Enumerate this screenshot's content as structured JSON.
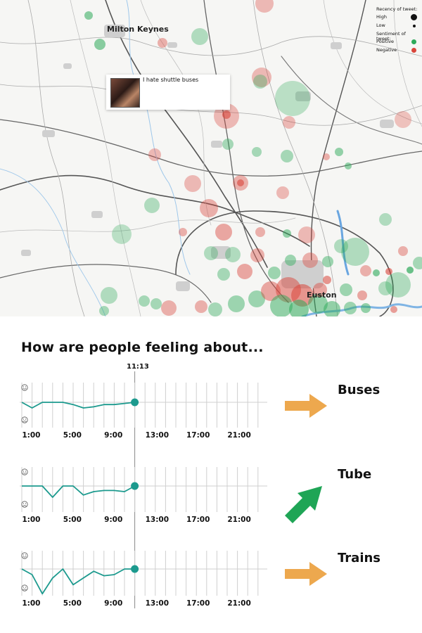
{
  "map": {
    "place_labels": [
      {
        "id": "milton-keynes",
        "text": "Milton Keynes"
      },
      {
        "id": "euston",
        "text": "Euston"
      }
    ],
    "popup": {
      "text": "I hate shuttle buses"
    },
    "legend": {
      "recency_title": "Recency of tweet:",
      "recency_items": [
        {
          "label": "High"
        },
        {
          "label": "Low"
        }
      ],
      "sentiment_title": "Sentiment of tweet:",
      "sentiment_items": [
        {
          "label": "Positive",
          "color": "#2eaa5a"
        },
        {
          "label": "Negative",
          "color": "#d9453b"
        }
      ]
    },
    "colors": {
      "positive": "#2eaa5a",
      "negative": "#d9453b"
    }
  },
  "question": "How are people feeling about...",
  "current_time": "11:13",
  "time_ticks": [
    "1:00",
    "5:00",
    "9:00",
    "13:00",
    "17:00",
    "21:00"
  ],
  "chart_data": [
    {
      "type": "line",
      "name": "Buses",
      "arrow": {
        "direction": "right",
        "color": "#eda84e"
      },
      "y_icons": [
        "happy-face-icon",
        "sad-face-icon"
      ],
      "x": [
        0,
        1,
        2,
        3,
        4,
        5,
        6,
        7,
        8,
        9,
        10,
        11
      ],
      "values": [
        0.0,
        -0.5,
        0.0,
        0.0,
        0.0,
        -0.2,
        -0.5,
        -0.4,
        -0.2,
        -0.2,
        -0.1,
        0.0
      ],
      "ylim": [
        -1.5,
        1.5
      ]
    },
    {
      "type": "line",
      "name": "Tube",
      "arrow": {
        "direction": "up-right",
        "color": "#1fa556"
      },
      "y_icons": [
        "happy-face-icon",
        "sad-face-icon"
      ],
      "x": [
        0,
        1,
        2,
        3,
        4,
        5,
        6,
        7,
        8,
        9,
        10,
        11
      ],
      "values": [
        0.0,
        0.0,
        0.0,
        -1.0,
        0.0,
        0.0,
        -0.8,
        -0.5,
        -0.4,
        -0.4,
        -0.5,
        0.0
      ],
      "ylim": [
        -1.5,
        1.5
      ]
    },
    {
      "type": "line",
      "name": "Trains",
      "arrow": {
        "direction": "right",
        "color": "#eda84e"
      },
      "y_icons": [
        "happy-face-icon",
        "sad-face-icon"
      ],
      "x": [
        0,
        1,
        2,
        3,
        4,
        5,
        6,
        7,
        8,
        9,
        10,
        11
      ],
      "values": [
        0.0,
        -0.5,
        -2.2,
        -0.8,
        0.0,
        -1.4,
        -0.8,
        -0.2,
        -0.6,
        -0.5,
        0.0,
        0.0
      ],
      "ylim": [
        -2.5,
        1.5
      ]
    }
  ]
}
